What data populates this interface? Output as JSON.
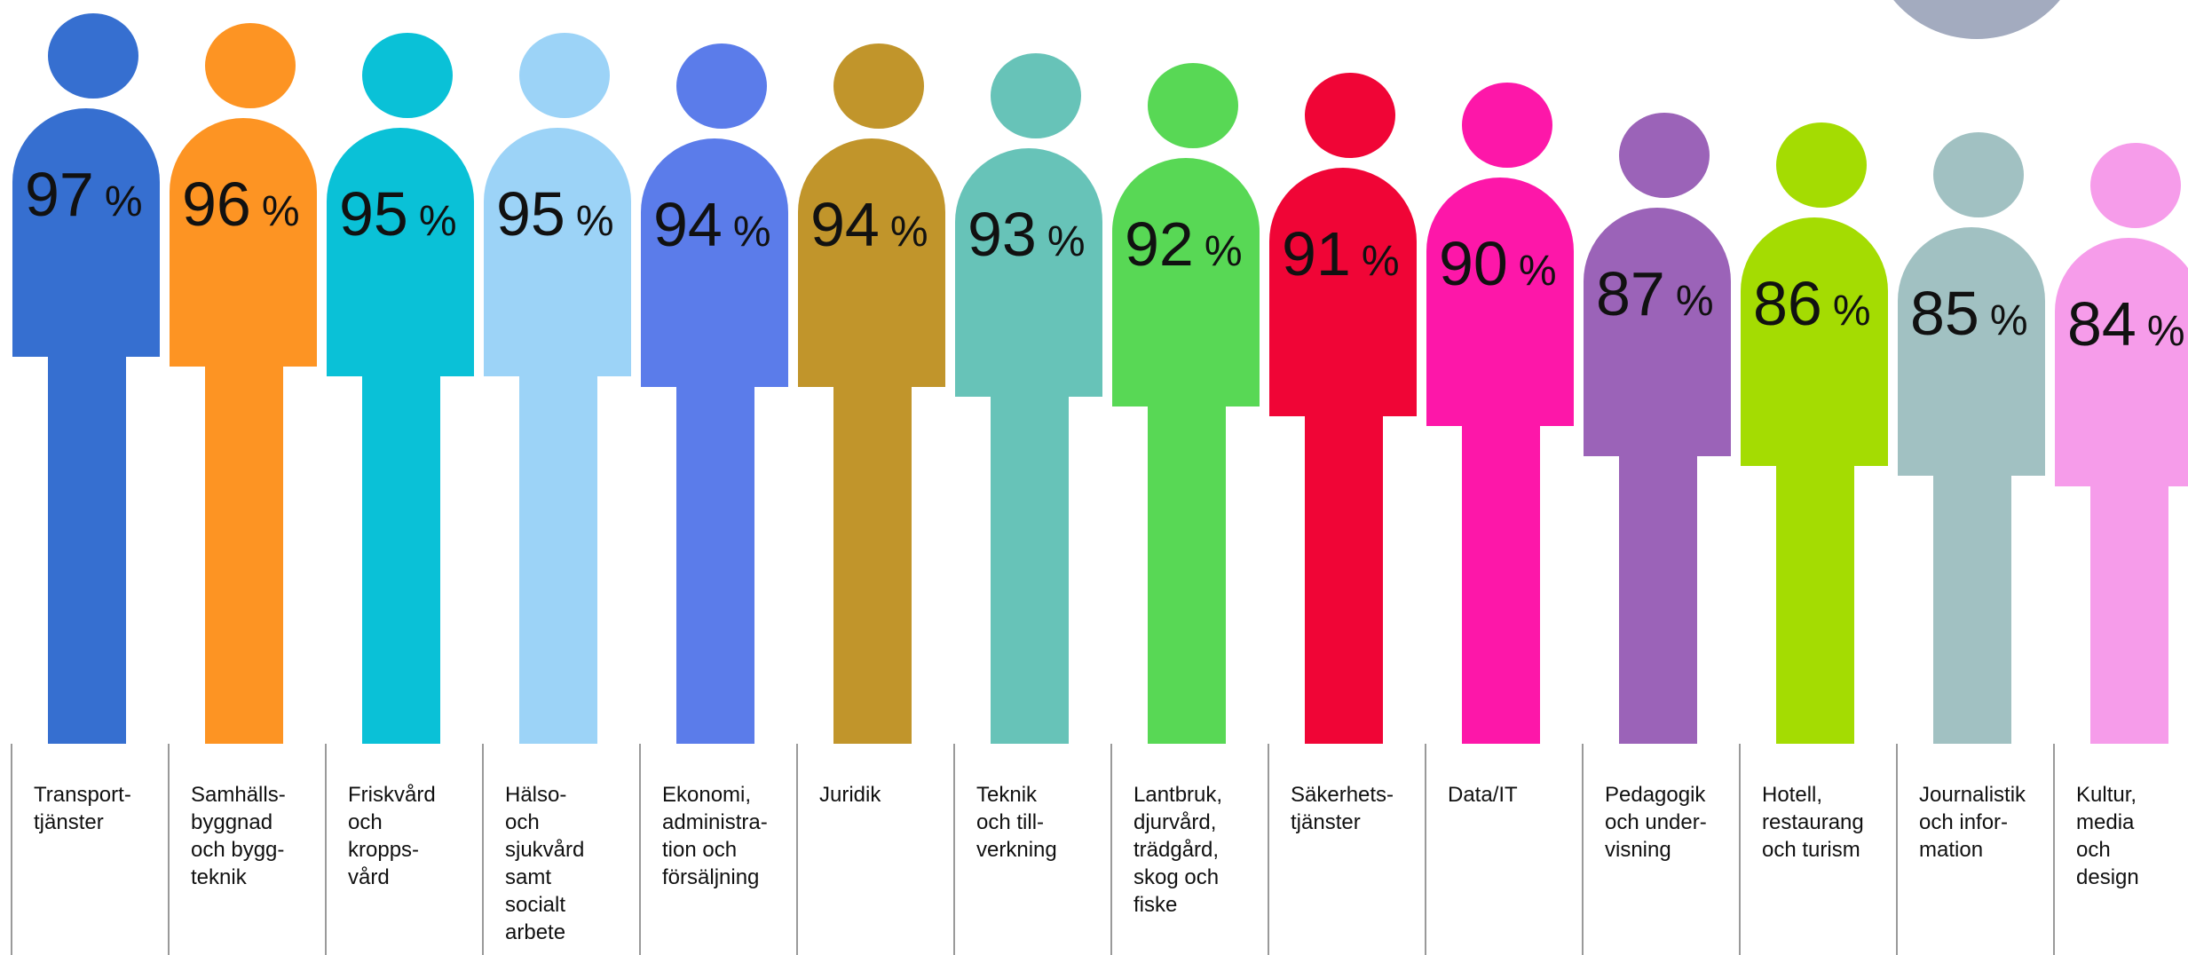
{
  "chart_data": {
    "type": "bar",
    "unit": "%",
    "percent_sign": "%",
    "categories": [
      "Transport-\ntjänster",
      "Samhälls-\nbyggnad\noch bygg-\nteknik",
      "Friskvård\noch\nkropps-\nvård",
      "Hälso-\noch\nsjukvård\nsamt\nsocialt\narbete",
      "Ekonomi,\nadministra-\ntion och\nförsäljning",
      "Juridik",
      "Teknik\noch till-\nverkning",
      "Lantbruk,\ndjurvård,\nträdgård,\nskog och\nfiske",
      "Säkerhets-\ntjänster",
      "Data/IT",
      "Pedagogik\noch under-\nvisning",
      "Hotell,\nrestaurang\noch turism",
      "Journalistik\noch infor-\nmation",
      "Kultur,\nmedia\noch\ndesign"
    ],
    "values": [
      97,
      96,
      95,
      95,
      94,
      94,
      93,
      92,
      91,
      90,
      87,
      86,
      85,
      84
    ],
    "colors": [
      "#366fd0",
      "#fd9423",
      "#0ac1d7",
      "#9cd3f7",
      "#5b7cea",
      "#c1952b",
      "#67c3b8",
      "#58d855",
      "#f00536",
      "#fd17a9",
      "#9b63b8",
      "#a4dc02",
      "#a1c1c2",
      "#f69cea"
    ],
    "decor_circle_color": "#a3abbf",
    "ylim": [
      84,
      97
    ]
  }
}
